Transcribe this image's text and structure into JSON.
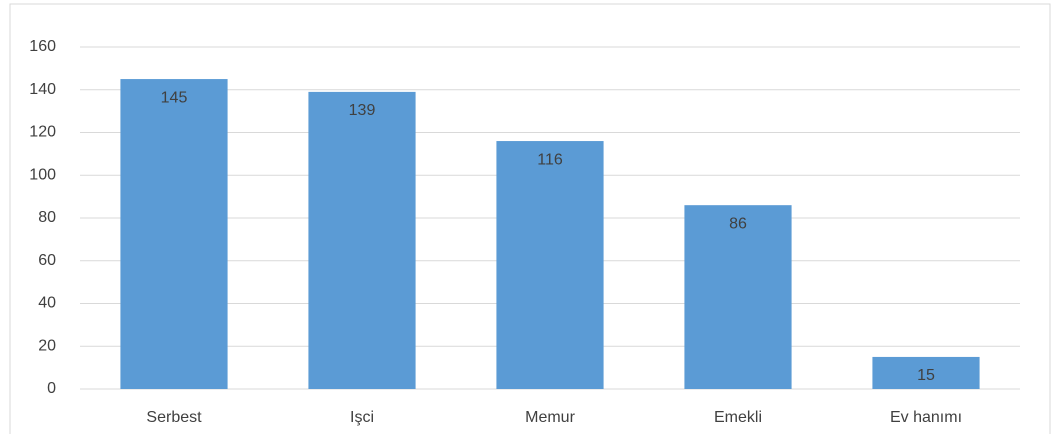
{
  "chart_data": {
    "type": "bar",
    "categories": [
      "Serbest",
      "Işci",
      "Memur",
      "Emekli",
      "Ev hanımı"
    ],
    "values": [
      145,
      139,
      116,
      86,
      15
    ],
    "color": "#5b9bd5",
    "ylim": [
      0,
      160
    ],
    "yticks": [
      0,
      20,
      40,
      60,
      80,
      100,
      120,
      140,
      160
    ],
    "grid": true
  }
}
